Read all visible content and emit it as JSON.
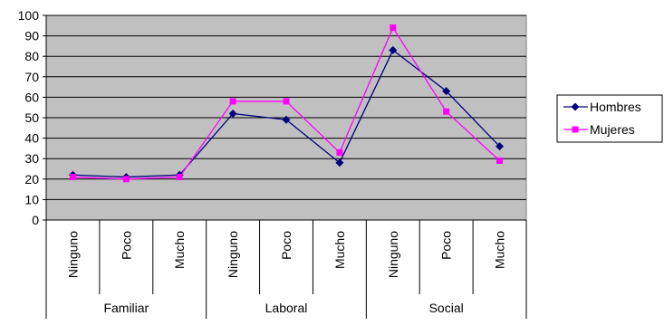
{
  "chart_data": {
    "type": "line",
    "title": "",
    "xlabel": "",
    "ylabel": "",
    "ylim": [
      0,
      100
    ],
    "y_ticks": [
      0,
      10,
      20,
      30,
      40,
      50,
      60,
      70,
      80,
      90,
      100
    ],
    "grid": true,
    "legend_position": "right",
    "plot_background": "#C0C0C0",
    "categories": [
      "Ninguno",
      "Poco",
      "Mucho",
      "Ninguno",
      "Poco",
      "Mucho",
      "Ninguno",
      "Poco",
      "Mucho"
    ],
    "groups": [
      {
        "label": "Familiar",
        "count": 3
      },
      {
        "label": "Laboral",
        "count": 3
      },
      {
        "label": "Social",
        "count": 3
      }
    ],
    "series": [
      {
        "name": "Hombres",
        "color": "#000080",
        "marker": "diamond",
        "values": [
          22,
          21,
          22,
          52,
          49,
          28,
          83,
          63,
          36
        ]
      },
      {
        "name": "Mujeres",
        "color": "#FF00FF",
        "marker": "square",
        "values": [
          21,
          20,
          21,
          58,
          58,
          33,
          94,
          53,
          29
        ]
      }
    ]
  }
}
